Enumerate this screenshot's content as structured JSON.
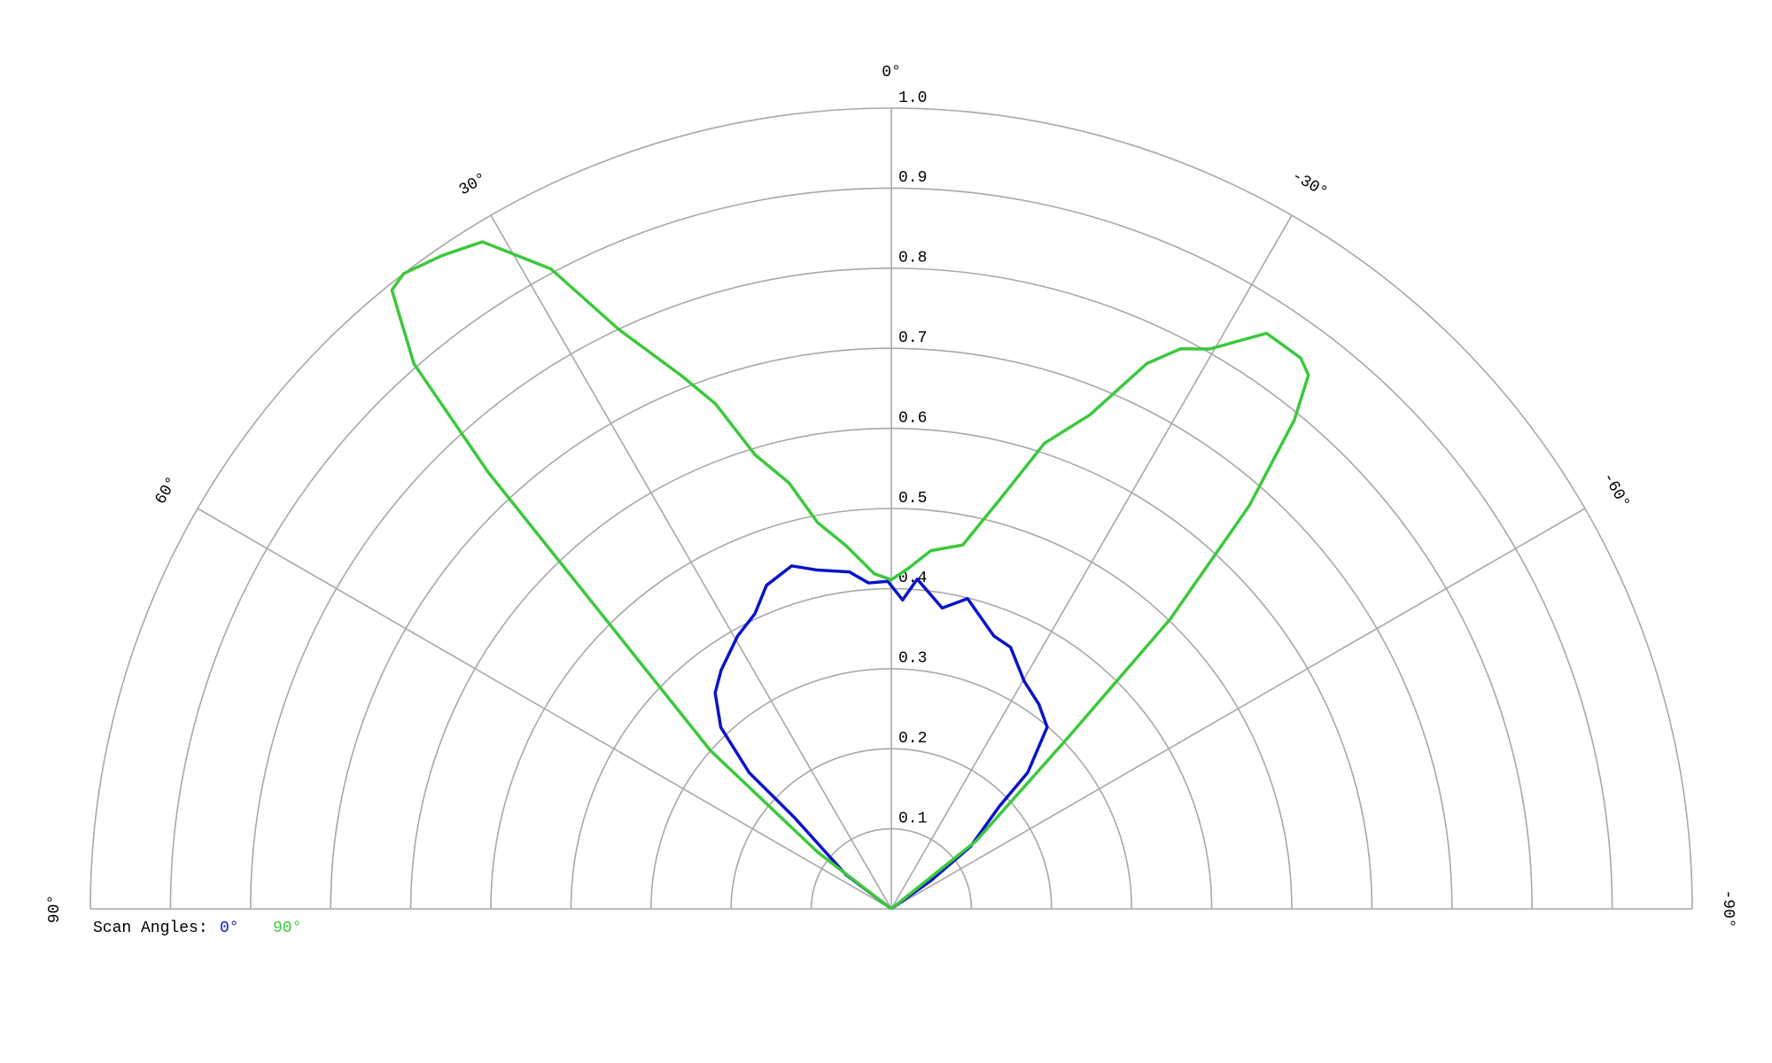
{
  "chart_data": {
    "type": "polar",
    "legend_title": "Scan Angles:",
    "rlim": [
      0,
      1
    ],
    "thetalim": [
      -90,
      90
    ],
    "rticks": [
      0.1,
      0.2,
      0.3,
      0.4,
      0.5,
      0.6,
      0.7,
      0.8,
      0.9,
      {
        "value": 1,
        "label": "1.0"
      }
    ],
    "thetaticks": [
      {
        "value": 90,
        "label": "90°"
      },
      {
        "value": 60,
        "label": "60°"
      },
      {
        "value": 30,
        "label": "30°"
      },
      {
        "value": 0,
        "label": "0°"
      },
      {
        "value": -30,
        "label": "-30°"
      },
      {
        "value": -60,
        "label": "-60°"
      },
      {
        "value": -90,
        "label": "-90°"
      }
    ],
    "grid": true,
    "series": [
      {
        "name": "0°",
        "color": "#0a14c8",
        "theta": [
          55,
          53,
          46.7,
          46.2,
          43.2,
          39.2,
          35.5,
          29.4,
          24.8,
          21.1,
          16.2,
          12.3,
          7.1,
          4,
          0.6,
          -2.1,
          -4.5,
          -9.6,
          -13.8,
          -20.6,
          -24.5,
          -30.3,
          -35.8,
          -40.6,
          -45,
          -46.5,
          -51.8,
          -54.5,
          -55
        ],
        "values": [
          0,
          0.071,
          0.166,
          0.246,
          0.311,
          0.348,
          0.366,
          0.391,
          0.406,
          0.433,
          0.446,
          0.433,
          0.424,
          0.408,
          0.409,
          0.386,
          0.413,
          0.381,
          0.399,
          0.364,
          0.359,
          0.329,
          0.315,
          0.299,
          0.241,
          0.186,
          0.126,
          0.061,
          0
        ]
      },
      {
        "name": "90°",
        "color": "#3cc83c",
        "theta": [
          55,
          52.4,
          48.8,
          42.7,
          41.2,
          38.9,
          37.5,
          34.5,
          31.5,
          28,
          25.2,
          21.5,
          19.2,
          16.7,
          13.5,
          10.8,
          7.1,
          2.9,
          0,
          -2.9,
          -6.3,
          -11.1,
          -14.8,
          -18.2,
          -21.9,
          -25.1,
          -27.3,
          -29.6,
          -33.1,
          -36.6,
          -38,
          -39.5,
          -41.6,
          -43.9,
          -45.9,
          -51.3,
          -55
        ],
        "values": [
          0,
          0.116,
          0.3,
          0.743,
          0.905,
          0.993,
          1.0,
          0.99,
          0.977,
          0.905,
          0.8,
          0.716,
          0.668,
          0.592,
          0.547,
          0.491,
          0.457,
          0.419,
          0.411,
          0.426,
          0.45,
          0.463,
          0.528,
          0.612,
          0.665,
          0.752,
          0.787,
          0.804,
          0.858,
          0.857,
          0.846,
          0.791,
          0.673,
          0.502,
          0.306,
          0.136,
          0
        ]
      }
    ]
  }
}
